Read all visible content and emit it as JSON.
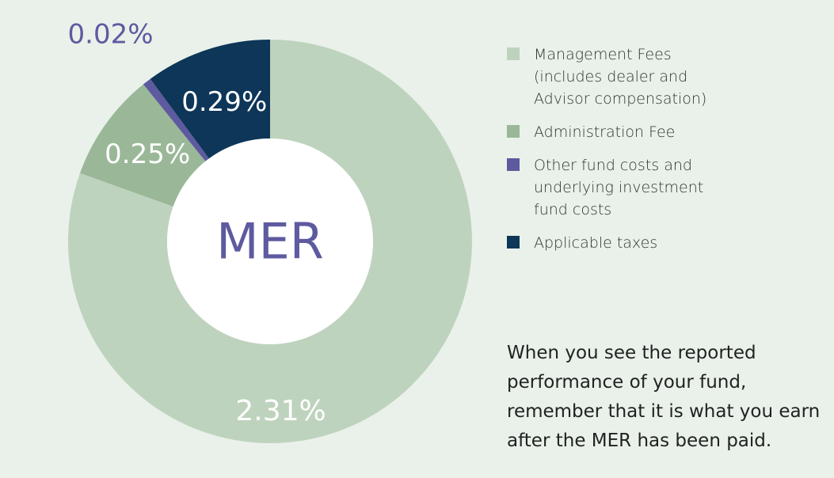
{
  "chart_data": {
    "type": "pie",
    "center_label": "MER",
    "slices": [
      {
        "name": "Management Fees\n(includes dealer and\nAdvisor compensation)",
        "value": 2.31,
        "label": "2.31%",
        "color": "#bed3bd"
      },
      {
        "name": "Administration Fee",
        "value": 0.25,
        "label": "0.25%",
        "color": "#9ab898"
      },
      {
        "name": "Other fund costs and\nunderlying investment\nfund costs",
        "value": 0.02,
        "label": "0.02%",
        "color": "#5e5aa0"
      },
      {
        "name": "Applicable taxes",
        "value": 0.29,
        "label": "0.29%",
        "color": "#0d3658"
      }
    ],
    "legend_position": "right"
  },
  "note": "When you see the reported\nperformance of your fund,\nremember that it is what you earn\nafter the MER has been paid.",
  "colors": {
    "background": "#e9f1ea",
    "center_fill": "#ffffff",
    "center_text": "#5e5aa0",
    "label_light": "#ffffff"
  }
}
